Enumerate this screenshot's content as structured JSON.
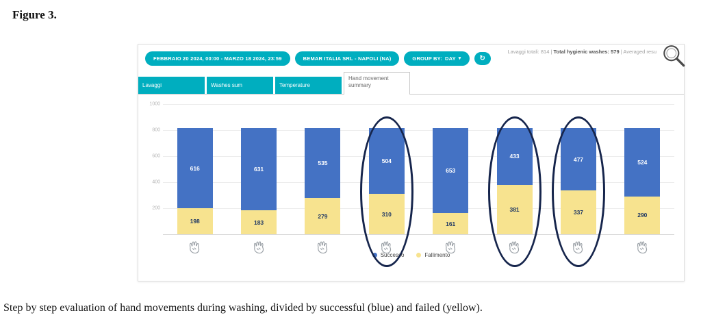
{
  "figure": {
    "label": "Figure 3.",
    "caption": "Step by step evaluation of hand movements during washing, divided by successful (blue) and failed (yellow)."
  },
  "dashboard": {
    "toolbar": {
      "date_range": "FEBBRAIO 20 2024, 00:00 - MARZO 18 2024, 23:59",
      "site": "BEMAR ITALIA SRL - NAPOLI (NA)",
      "group_by_label": "GROUP BY:",
      "group_by_value": "DAY",
      "summary_part1": "Lavaggi totali: 814 | ",
      "summary_part2": "Total hygienic washes: 579",
      "summary_part3": " | Averaged resu"
    },
    "tabs": [
      {
        "label": "Lavaggi"
      },
      {
        "label": "Washes sum"
      },
      {
        "label": "Temperature"
      },
      {
        "label": "Hand movement summary"
      }
    ],
    "icons": {
      "refresh": "↻",
      "caret_down": "▾"
    },
    "colors": {
      "accent_teal": "#00aebf",
      "annotation_navy": "#16254c"
    }
  },
  "chart_data": {
    "type": "bar",
    "stacked": true,
    "title": "Hand movement summary",
    "categories": [
      "hand-step-1",
      "hand-step-2",
      "hand-step-3",
      "hand-step-4",
      "hand-step-5",
      "hand-step-6",
      "hand-step-7",
      "hand-step-8"
    ],
    "series": [
      {
        "name": "Successo",
        "color": "#4472c4",
        "text_color": "#ffffff",
        "values": [
          616,
          631,
          535,
          504,
          653,
          433,
          477,
          524
        ]
      },
      {
        "name": "Fallimento",
        "color": "#f7e38f",
        "text_color": "#1f3864",
        "values": [
          198,
          183,
          279,
          310,
          161,
          381,
          337,
          290
        ]
      }
    ],
    "stack_bottom": "Fallimento",
    "ylim": [
      0,
      1000
    ],
    "yticks": [
      1000,
      800,
      600,
      400,
      200
    ],
    "grid": true,
    "legend_position": "bottom",
    "x_axis_icons": "hand-gesture-icons",
    "annotated_bars_1indexed": [
      4,
      6,
      7
    ]
  }
}
